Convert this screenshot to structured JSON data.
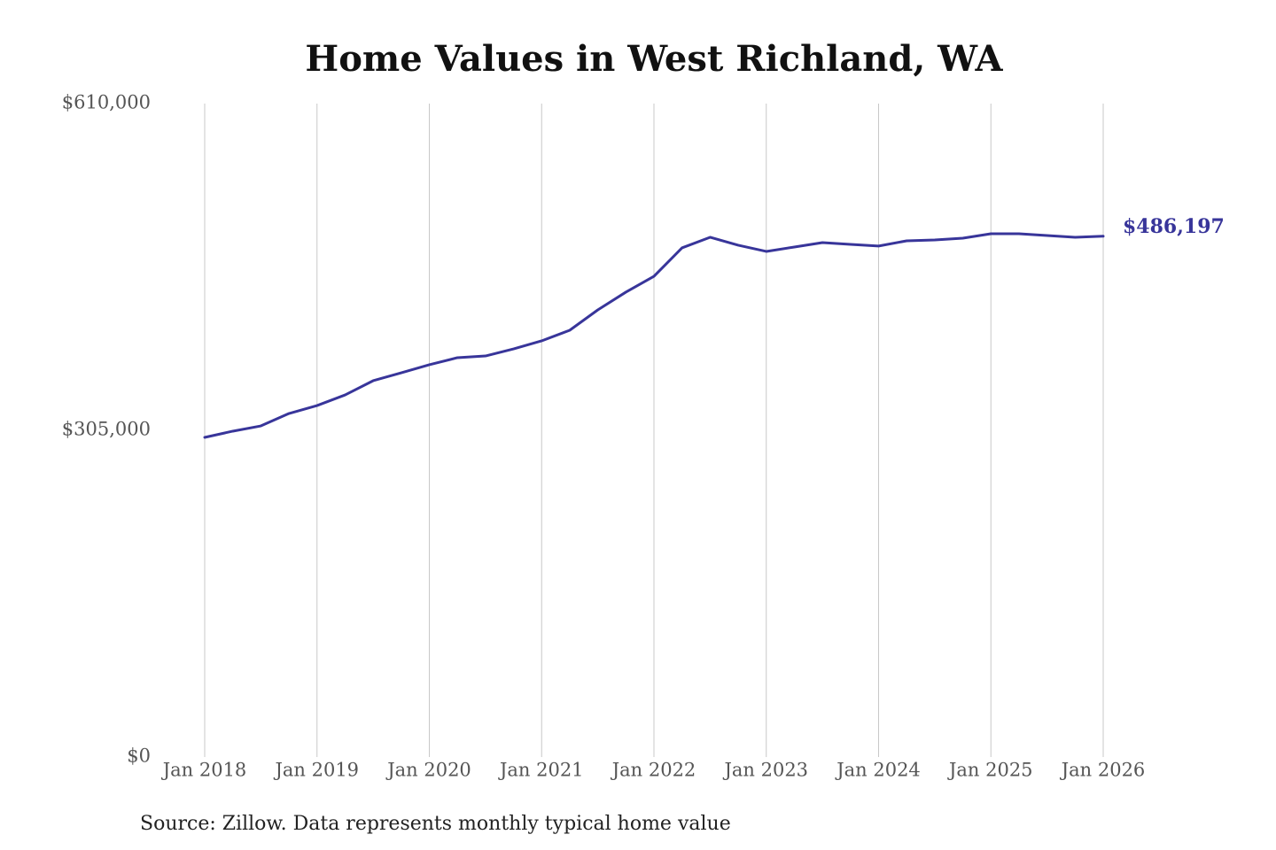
{
  "chart_data": {
    "type": "line",
    "title": "Home Values in West Richland, WA",
    "source": "Source: Zillow. Data represents monthly typical home value",
    "categories": [
      "Jan 2018",
      null,
      null,
      null,
      "Jan 2019",
      null,
      null,
      null,
      "Jan 2020",
      null,
      null,
      null,
      "Jan 2021",
      null,
      null,
      null,
      "Jan 2022",
      null,
      null,
      null,
      "Jan 2023",
      null,
      null,
      null,
      "Jan 2024",
      null,
      null,
      null,
      "Jan 2025",
      null,
      null,
      null,
      "Jan 2026"
    ],
    "series": [
      {
        "name": "West Richland, WA",
        "color": "#38359a",
        "values": [
          298400,
          304200,
          309100,
          320700,
          328100,
          338000,
          351300,
          358700,
          366200,
          372800,
          374400,
          381000,
          388500,
          398400,
          417400,
          434000,
          448800,
          475300,
          485200,
          477800,
          472000,
          476100,
          480200,
          478600,
          477000,
          481900,
          482700,
          484400,
          488500,
          488500,
          486800,
          485200,
          486197
        ],
        "value_labels": [
          null,
          null,
          null,
          null,
          null,
          null,
          null,
          null,
          null,
          null,
          null,
          null,
          null,
          null,
          null,
          null,
          null,
          null,
          null,
          null,
          null,
          null,
          null,
          null,
          null,
          null,
          null,
          null,
          null,
          null,
          null,
          null,
          "$486,197"
        ]
      }
    ],
    "ylim": [
      0,
      610000
    ],
    "yticks": [
      {
        "value": 0,
        "label": "$0"
      },
      {
        "value": 305000,
        "label": "$305,000"
      },
      {
        "value": 610000,
        "label": "$610,000"
      }
    ],
    "grid": true
  }
}
